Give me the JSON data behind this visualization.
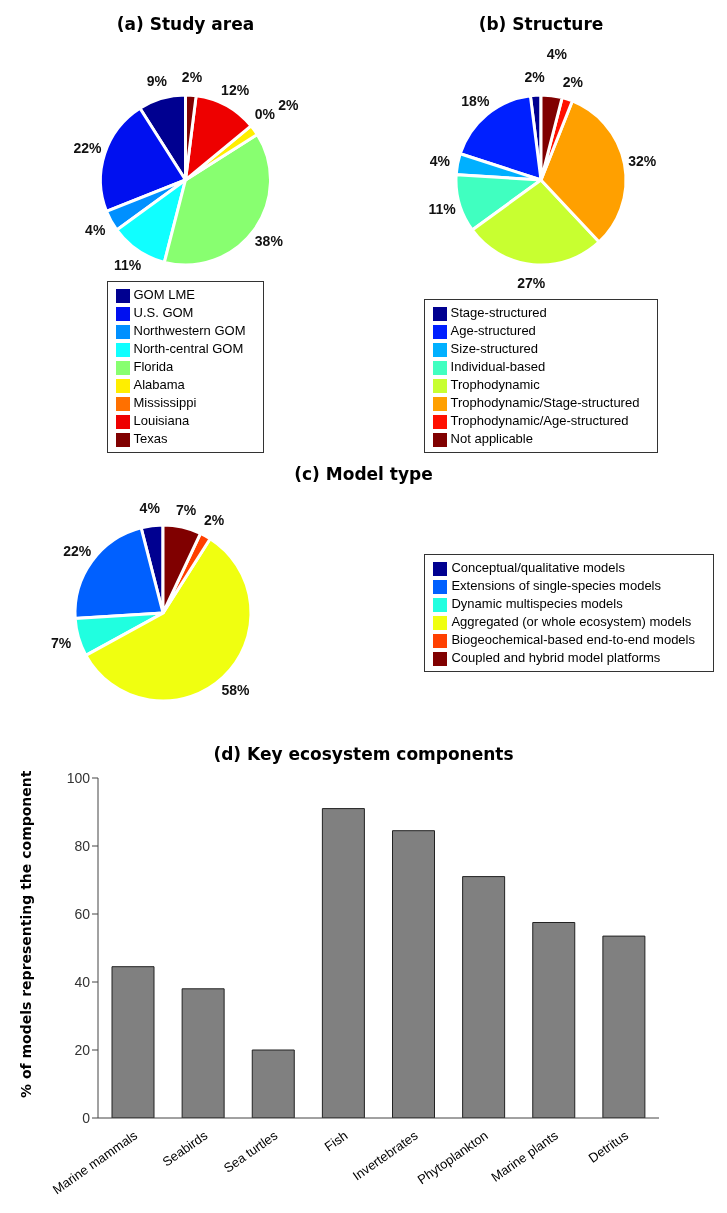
{
  "chart_data": [
    {
      "type": "pie",
      "title": "(a) Study area",
      "categories": [
        "GOM LME",
        "U.S. GOM",
        "Northwestern GOM",
        "North-central GOM",
        "Florida",
        "Alabama",
        "Mississippi",
        "Louisiana",
        "Texas"
      ],
      "values": [
        9,
        22,
        4,
        11,
        38,
        2,
        0,
        12,
        2
      ],
      "value_labels": [
        "9%",
        "22%",
        "4%",
        "11%",
        "38%",
        "2%",
        "0%",
        "12%",
        "2%"
      ],
      "colors": [
        "#000090",
        "#0010f0",
        "#0090ff",
        "#10ffff",
        "#88ff70",
        "#ffee00",
        "#ff7000",
        "#ee0000",
        "#800000"
      ],
      "legend": "bottom"
    },
    {
      "type": "pie",
      "title": "(b) Structure",
      "categories": [
        "Stage-structured",
        "Age-structured",
        "Size-structured",
        "Individual-based",
        "Trophodynamic",
        "Trophodynamic/Stage-structured",
        "Trophodynamic/Age-structured",
        "Not applicable"
      ],
      "values": [
        2,
        18,
        4,
        11,
        27,
        32,
        2,
        4
      ],
      "value_labels": [
        "2%",
        "18%",
        "4%",
        "11%",
        "27%",
        "32%",
        "2%",
        "4%"
      ],
      "colors": [
        "#000090",
        "#0020ff",
        "#00b0ff",
        "#40ffc0",
        "#c8ff30",
        "#ffa000",
        "#ff1000",
        "#800000"
      ],
      "legend": "bottom"
    },
    {
      "type": "pie",
      "title": "(c) Model type",
      "categories": [
        "Conceptual/qualitative models",
        "Extensions of single-species models",
        "Dynamic multispecies models",
        "Aggregated (or whole ecosystem) models",
        "Biogeochemical-based end-to-end models",
        "Coupled and hybrid model platforms"
      ],
      "values": [
        4,
        22,
        7,
        58,
        2,
        7
      ],
      "value_labels": [
        "4%",
        "22%",
        "7%",
        "58%",
        "2%",
        "7%"
      ],
      "colors": [
        "#000090",
        "#0060ff",
        "#20ffe0",
        "#f0ff10",
        "#ff4000",
        "#800000"
      ],
      "legend": "right"
    },
    {
      "type": "bar",
      "title": "(d) Key ecosystem components",
      "ylabel": "% of models representing the component",
      "categories": [
        "Marine mammals",
        "Seabirds",
        "Sea turtles",
        "Fish",
        "Invertebrates",
        "Phytoplankton",
        "Marine plants",
        "Detritus"
      ],
      "values": [
        44.5,
        38,
        20,
        91,
        84.5,
        71,
        57.5,
        53.5
      ],
      "color": "#808080",
      "ylim": [
        0,
        100
      ],
      "yticks": [
        0,
        20,
        40,
        60,
        80,
        100
      ]
    }
  ]
}
